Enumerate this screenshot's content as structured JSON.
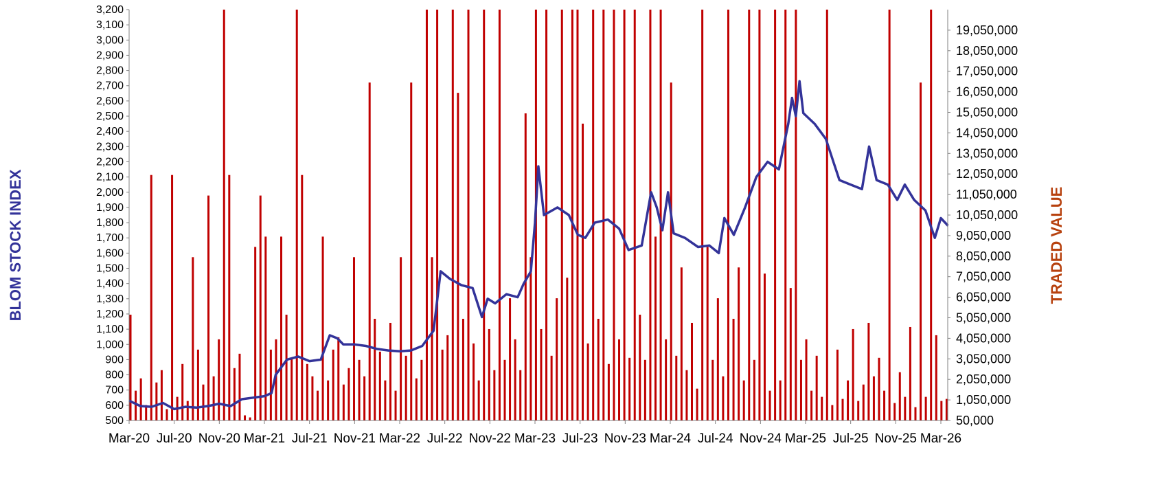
{
  "chart_data": {
    "type": "bar+line",
    "colors": {
      "index_line": "#333399",
      "traded_bars": "#C00000",
      "left_title": "#333399",
      "right_title": "#B7410E",
      "axis": "#808080"
    },
    "xlabel_ticks": [
      "Mar-20",
      "Jul-20",
      "Nov-20",
      "Mar-21",
      "Jul-21",
      "Nov-21",
      "Mar-22",
      "Jul-22",
      "Nov-22",
      "Mar-23",
      "Jul-23",
      "Nov-23",
      "Mar-24",
      "Jul-24",
      "Nov-24",
      "Mar-25",
      "Jul-25",
      "Nov-25",
      "Mar-26"
    ],
    "x_range": [
      "2020-03-01",
      "2026-03-20"
    ],
    "left_axis": {
      "title": "BLOM STOCK INDEX",
      "ylim": [
        500,
        3200
      ],
      "step": 100
    },
    "right_axis": {
      "title": "TRADED VALUE",
      "ylim": [
        50000,
        20050000
      ],
      "step": 1000000
    },
    "grid": false,
    "legend": "none",
    "index_series": [
      [
        "2020-03-01",
        630
      ],
      [
        "2020-04-01",
        595
      ],
      [
        "2020-05-01",
        590
      ],
      [
        "2020-06-01",
        615
      ],
      [
        "2020-07-01",
        575
      ],
      [
        "2020-08-01",
        590
      ],
      [
        "2020-09-01",
        585
      ],
      [
        "2020-10-01",
        595
      ],
      [
        "2020-11-01",
        610
      ],
      [
        "2020-12-01",
        595
      ],
      [
        "2021-01-01",
        640
      ],
      [
        "2021-02-01",
        650
      ],
      [
        "2021-03-01",
        660
      ],
      [
        "2021-03-20",
        680
      ],
      [
        "2021-04-01",
        800
      ],
      [
        "2021-05-01",
        900
      ],
      [
        "2021-06-01",
        920
      ],
      [
        "2021-07-01",
        890
      ],
      [
        "2021-08-01",
        900
      ],
      [
        "2021-08-25",
        1060
      ],
      [
        "2021-09-15",
        1040
      ],
      [
        "2021-10-01",
        1000
      ],
      [
        "2021-11-01",
        1000
      ],
      [
        "2021-12-01",
        990
      ],
      [
        "2022-01-01",
        970
      ],
      [
        "2022-02-01",
        960
      ],
      [
        "2022-03-01",
        955
      ],
      [
        "2022-04-01",
        960
      ],
      [
        "2022-05-01",
        990
      ],
      [
        "2022-06-01",
        1090
      ],
      [
        "2022-06-20",
        1480
      ],
      [
        "2022-07-15",
        1430
      ],
      [
        "2022-08-15",
        1390
      ],
      [
        "2022-09-15",
        1370
      ],
      [
        "2022-10-10",
        1180
      ],
      [
        "2022-10-25",
        1300
      ],
      [
        "2022-11-15",
        1270
      ],
      [
        "2022-12-15",
        1330
      ],
      [
        "2023-01-15",
        1310
      ],
      [
        "2023-02-01",
        1400
      ],
      [
        "2023-02-20",
        1480
      ],
      [
        "2023-03-01",
        1800
      ],
      [
        "2023-03-10",
        2170
      ],
      [
        "2023-03-25",
        1850
      ],
      [
        "2023-05-01",
        1900
      ],
      [
        "2023-06-01",
        1850
      ],
      [
        "2023-06-25",
        1720
      ],
      [
        "2023-07-15",
        1700
      ],
      [
        "2023-08-10",
        1800
      ],
      [
        "2023-09-15",
        1820
      ],
      [
        "2023-10-15",
        1760
      ],
      [
        "2023-11-10",
        1620
      ],
      [
        "2023-12-15",
        1650
      ],
      [
        "2024-01-10",
        2000
      ],
      [
        "2024-01-25",
        1900
      ],
      [
        "2024-02-10",
        1750
      ],
      [
        "2024-02-25",
        2000
      ],
      [
        "2024-03-10",
        1730
      ],
      [
        "2024-04-10",
        1700
      ],
      [
        "2024-05-15",
        1640
      ],
      [
        "2024-06-15",
        1650
      ],
      [
        "2024-07-10",
        1600
      ],
      [
        "2024-07-25",
        1830
      ],
      [
        "2024-08-20",
        1720
      ],
      [
        "2024-09-20",
        1900
      ],
      [
        "2024-10-20",
        2100
      ],
      [
        "2024-11-20",
        2200
      ],
      [
        "2024-12-20",
        2150
      ],
      [
        "2025-01-15",
        2450
      ],
      [
        "2025-01-25",
        2620
      ],
      [
        "2025-02-05",
        2500
      ],
      [
        "2025-02-15",
        2730
      ],
      [
        "2025-02-25",
        2520
      ],
      [
        "2025-03-25",
        2450
      ],
      [
        "2025-04-25",
        2350
      ],
      [
        "2025-05-15",
        2200
      ],
      [
        "2025-06-01",
        2080
      ],
      [
        "2025-07-01",
        2050
      ],
      [
        "2025-08-01",
        2020
      ],
      [
        "2025-08-20",
        2300
      ],
      [
        "2025-09-10",
        2080
      ],
      [
        "2025-10-10",
        2050
      ],
      [
        "2025-11-05",
        1950
      ],
      [
        "2025-11-25",
        2050
      ],
      [
        "2025-12-20",
        1950
      ],
      [
        "2026-01-20",
        1880
      ],
      [
        "2026-02-15",
        1700
      ],
      [
        "2026-03-01",
        1830
      ],
      [
        "2026-03-20",
        1780
      ]
    ],
    "traded_value_millions": [
      5.2,
      1.5,
      2.1,
      0.8,
      12,
      1.9,
      2.5,
      0.6,
      12,
      1.2,
      2.8,
      1.0,
      8,
      3.5,
      1.8,
      11,
      2.2,
      4.0,
      20.5,
      12,
      2.6,
      3.3,
      0.3,
      0.2,
      8.5,
      11,
      9,
      3.5,
      4.0,
      9.0,
      5.2,
      3.1,
      20.5,
      12,
      2.8,
      2.2,
      1.5,
      9.0,
      2.0,
      3.5,
      4.1,
      1.8,
      2.6,
      8.0,
      3.0,
      2.2,
      16.5,
      5.0,
      3.4,
      2.0,
      4.8,
      1.5,
      8.0,
      3.2,
      16.5,
      2.1,
      3.0,
      20.5,
      8.0,
      20.5,
      3.5,
      4.2,
      20.5,
      16.0,
      5.0,
      20.5,
      3.8,
      2.0,
      20.5,
      4.5,
      2.5,
      20.5,
      3.0,
      6.0,
      4.0,
      2.5,
      15,
      8,
      20.5,
      4.5,
      20.5,
      3.2,
      6.0,
      20.5,
      7.0,
      20.5,
      20.5,
      14.5,
      3.8,
      20.5,
      5.0,
      20.5,
      2.8,
      20.5,
      4.0,
      20.5,
      3.1,
      20.5,
      5.2,
      3.0,
      20.5,
      9.0,
      20.5,
      4.0,
      16.5,
      3.2,
      7.5,
      2.5,
      4.8,
      1.6,
      20.5,
      8.5,
      3.0,
      6.0,
      2.2,
      20.5,
      5.0,
      7.5,
      2.0,
      20.5,
      3.0,
      20.5,
      7.2,
      1.5,
      20.5,
      2.0,
      20.5,
      6.5,
      20.5,
      3.0,
      4.0,
      1.5,
      3.2,
      1.2,
      20.5,
      0.8,
      3.5,
      1.1,
      2.0,
      4.5,
      1.0,
      1.8,
      4.8,
      2.2,
      3.1,
      1.5,
      20.5,
      0.9,
      2.4,
      1.2,
      4.6,
      0.7,
      16.5,
      1.2,
      20.5,
      4.2,
      1.0,
      1.1
    ]
  }
}
